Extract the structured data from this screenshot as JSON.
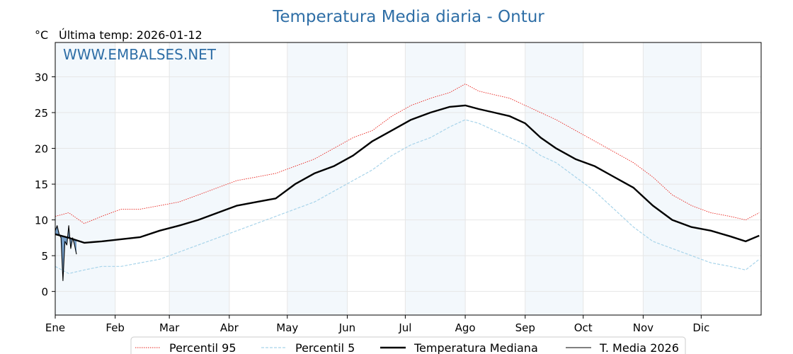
{
  "chart_data": {
    "type": "line",
    "title": "Temperatura Media diaria - Ontur",
    "y_unit": "°C",
    "subtitle": "Última temp: 2026-01-12",
    "watermark": "WWW.EMBALSES.NET",
    "ylim": [
      -3.3,
      34.8
    ],
    "yticks": [
      0,
      5,
      10,
      15,
      20,
      25,
      30
    ],
    "month_labels": [
      "Ene",
      "Feb",
      "Mar",
      "Abr",
      "May",
      "Jun",
      "Jul",
      "Ago",
      "Sep",
      "Oct",
      "Nov",
      "Dic"
    ],
    "month_start_days": [
      1,
      32,
      60,
      91,
      121,
      152,
      182,
      213,
      244,
      274,
      305,
      335
    ],
    "days_in_year": 365,
    "grid": true,
    "legend_position": "bottom",
    "series": [
      {
        "name": "Percentil 95",
        "color": "#e8231d",
        "style": "dotted",
        "x": [
          1,
          8,
          16,
          25,
          35,
          45,
          55,
          65,
          75,
          85,
          95,
          105,
          115,
          125,
          135,
          145,
          155,
          165,
          175,
          185,
          195,
          205,
          213,
          220,
          228,
          236,
          244,
          252,
          260,
          270,
          280,
          290,
          300,
          310,
          320,
          330,
          340,
          350,
          358,
          365
        ],
        "y": [
          10.5,
          11,
          9.5,
          10.5,
          11.5,
          11.5,
          12,
          12.5,
          13.5,
          14.5,
          15.5,
          16,
          16.5,
          17.5,
          18.5,
          20,
          21.5,
          22.5,
          24.5,
          26,
          27,
          27.8,
          29,
          28,
          27.5,
          27,
          26,
          25,
          24,
          22.5,
          21,
          19.5,
          18,
          16,
          13.5,
          12,
          11,
          10.5,
          10,
          11
        ]
      },
      {
        "name": "Percentil 5",
        "color": "#a8d4ea",
        "style": "dashed",
        "x": [
          1,
          8,
          16,
          25,
          35,
          45,
          55,
          65,
          75,
          85,
          95,
          105,
          115,
          125,
          135,
          145,
          155,
          165,
          175,
          185,
          195,
          205,
          213,
          220,
          228,
          236,
          244,
          252,
          260,
          270,
          280,
          290,
          300,
          310,
          320,
          330,
          340,
          350,
          358,
          365
        ],
        "y": [
          3.5,
          2.5,
          3,
          3.5,
          3.5,
          4,
          4.5,
          5.5,
          6.5,
          7.5,
          8.5,
          9.5,
          10.5,
          11.5,
          12.5,
          14,
          15.5,
          17,
          19,
          20.5,
          21.5,
          23,
          24,
          23.5,
          22.5,
          21.5,
          20.5,
          19,
          18,
          16,
          14,
          11.5,
          9,
          7,
          6,
          5,
          4,
          3.5,
          3,
          4.5
        ]
      },
      {
        "name": "Temperatura Mediana",
        "color": "#000000",
        "style": "solid-thick",
        "x": [
          1,
          8,
          16,
          25,
          35,
          45,
          55,
          65,
          75,
          85,
          95,
          105,
          115,
          125,
          135,
          145,
          155,
          165,
          175,
          185,
          195,
          205,
          213,
          220,
          228,
          236,
          244,
          252,
          260,
          270,
          280,
          290,
          300,
          310,
          320,
          330,
          340,
          350,
          358,
          365
        ],
        "y": [
          8,
          7.5,
          6.8,
          7,
          7.3,
          7.6,
          8.5,
          9.2,
          10,
          11,
          12,
          12.5,
          13,
          15,
          16.5,
          17.5,
          19,
          21,
          22.5,
          24,
          25,
          25.8,
          26,
          25.5,
          25,
          24.5,
          23.5,
          21.5,
          20,
          18.5,
          17.5,
          16,
          14.5,
          12,
          10,
          9,
          8.5,
          7.7,
          7,
          7.8
        ]
      },
      {
        "name": "T. Media 2026",
        "color": "#000000",
        "style": "solid-thin",
        "fill_below_median": "#4a7fb5",
        "x": [
          1,
          2,
          3,
          4,
          5,
          6,
          7,
          8,
          9,
          10,
          11,
          12
        ],
        "y": [
          8.5,
          9.2,
          8,
          7.5,
          1.5,
          7,
          6.5,
          9.2,
          6,
          7.5,
          6.5,
          5.2
        ]
      }
    ]
  }
}
